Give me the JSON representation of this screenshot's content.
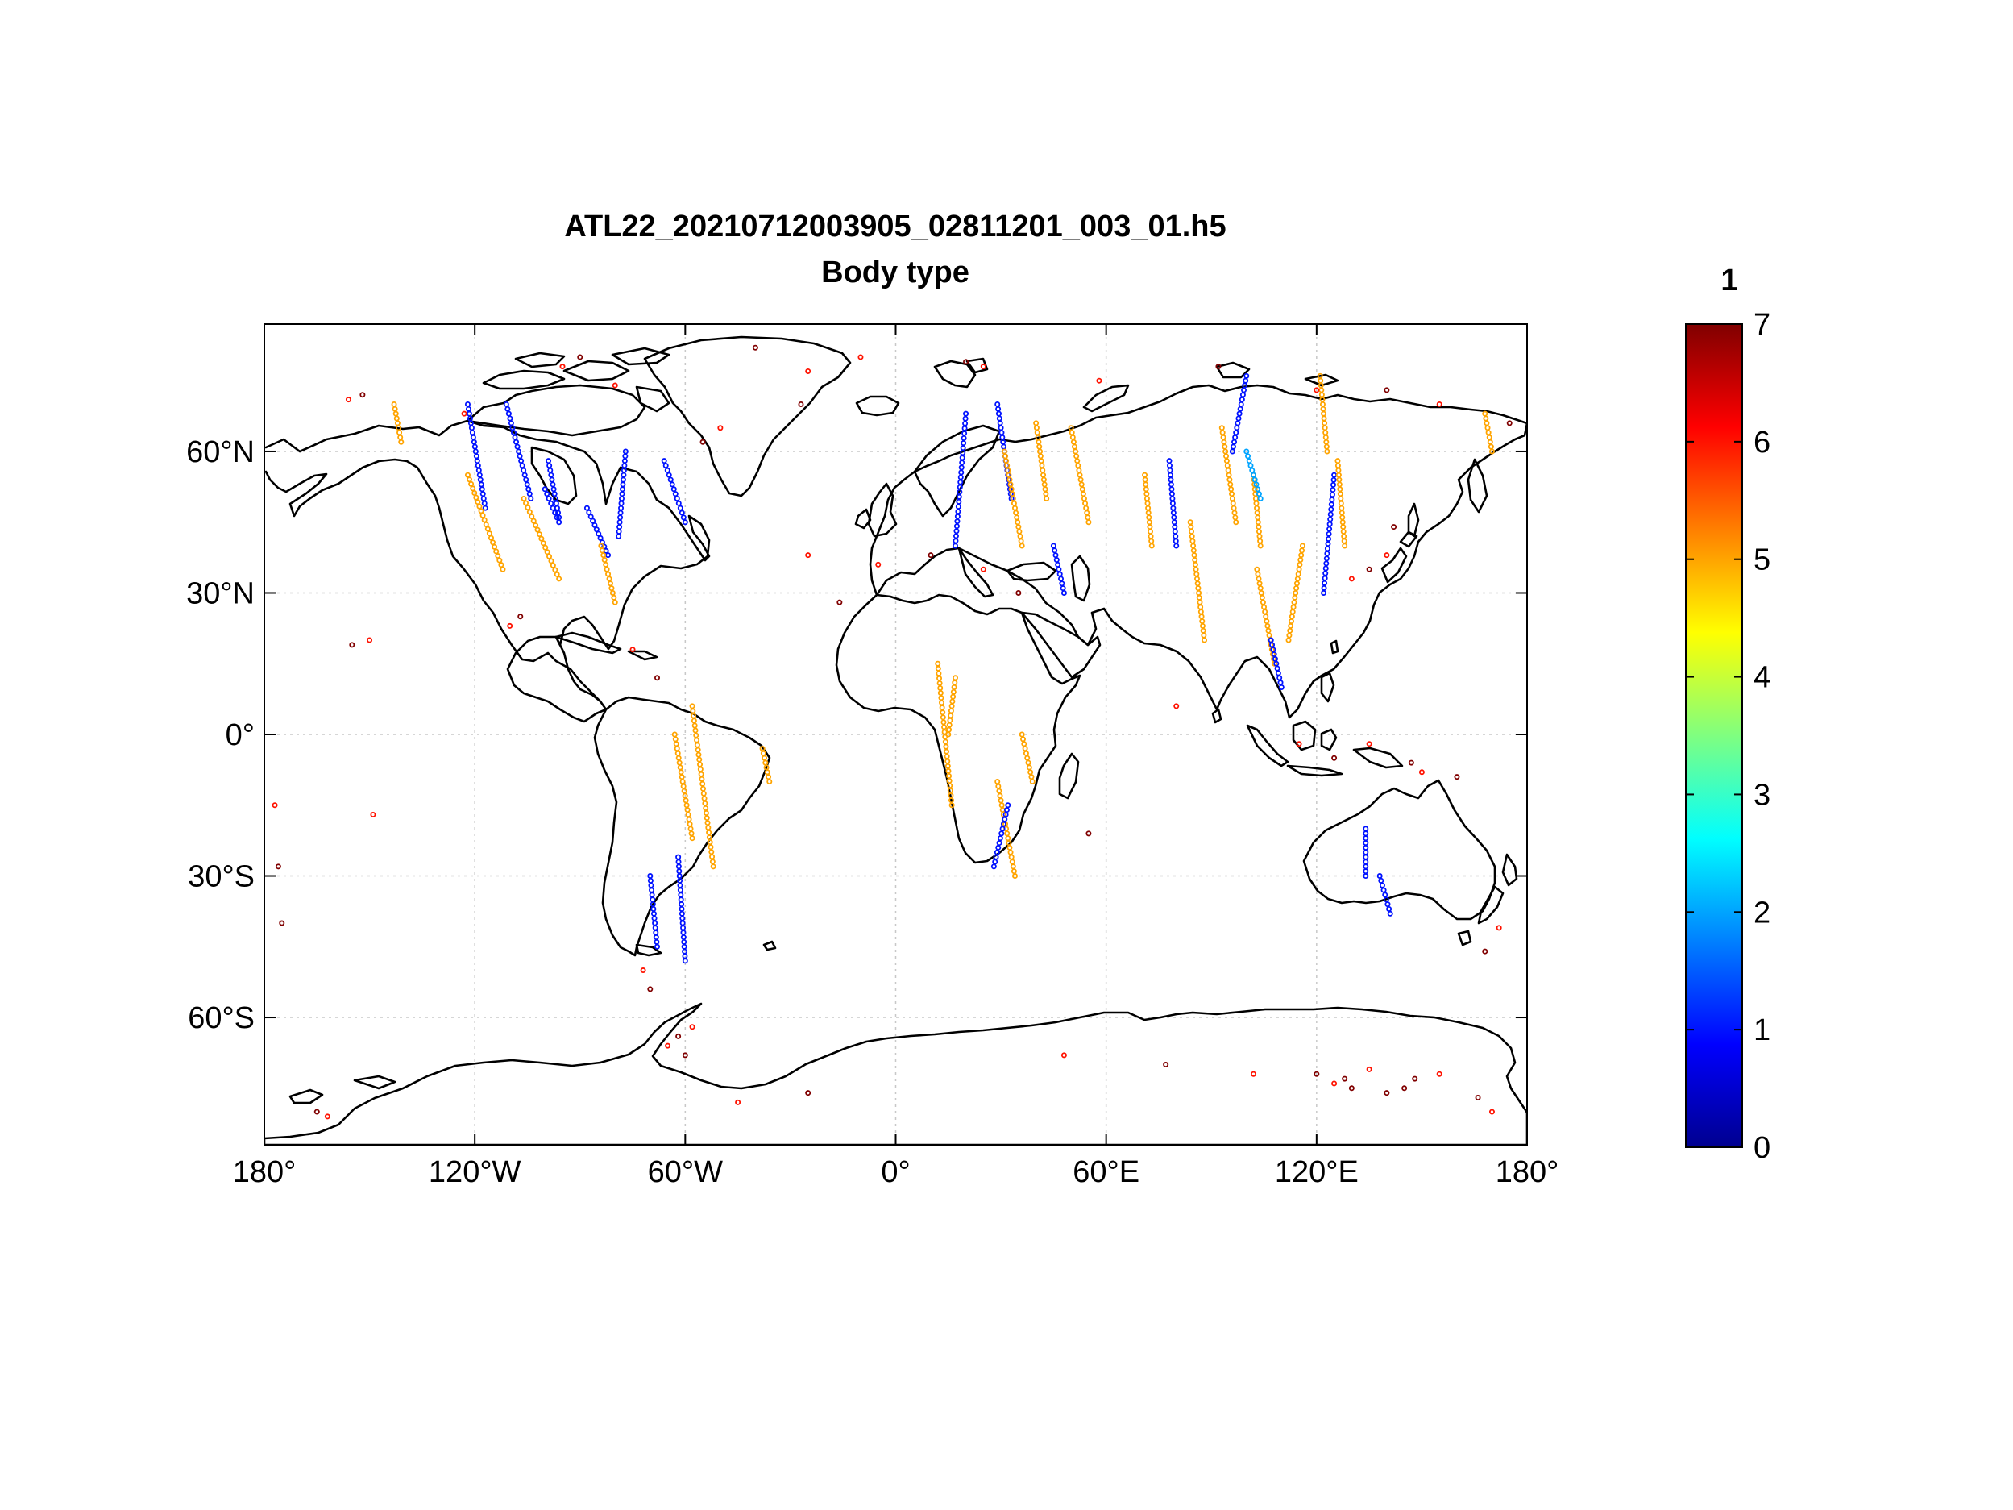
{
  "title": "ATL22_20210712003905_02811201_003_01.h5",
  "subtitle": "Body type",
  "colorbar": {
    "label": "1",
    "min": 0,
    "max": 7,
    "ticks": [
      "0",
      "1",
      "2",
      "3",
      "4",
      "5",
      "6",
      "7"
    ],
    "colormap": "jet"
  },
  "map": {
    "projection": "equirectangular",
    "lon_range": [
      -180,
      180
    ],
    "lat_range": [
      -87,
      87
    ],
    "grid": true,
    "x_ticks": [
      {
        "lon": -180,
        "label": "180°"
      },
      {
        "lon": -120,
        "label": "120°W"
      },
      {
        "lon": -60,
        "label": "60°W"
      },
      {
        "lon": 0,
        "label": "0°"
      },
      {
        "lon": 60,
        "label": "60°E"
      },
      {
        "lon": 120,
        "label": "120°E"
      },
      {
        "lon": 180,
        "label": "180°"
      }
    ],
    "y_ticks": [
      {
        "lat": 60,
        "label": "60°N"
      },
      {
        "lat": 30,
        "label": "30°N"
      },
      {
        "lat": 0,
        "label": "0°"
      },
      {
        "lat": -30,
        "label": "30°S"
      },
      {
        "lat": -60,
        "label": "60°S"
      }
    ],
    "tracks": [
      {
        "value": 5,
        "lon": [
          -143,
          -141
        ],
        "lat": [
          70,
          62
        ]
      },
      {
        "value": 1,
        "lon": [
          -122,
          -117
        ],
        "lat": [
          70,
          48
        ]
      },
      {
        "value": 5,
        "lon": [
          -122,
          -112
        ],
        "lat": [
          55,
          35
        ]
      },
      {
        "value": 1,
        "lon": [
          -111,
          -104
        ],
        "lat": [
          70,
          50
        ]
      },
      {
        "value": 5,
        "lon": [
          -106,
          -96
        ],
        "lat": [
          50,
          33
        ]
      },
      {
        "value": 1,
        "lon": [
          -99,
          -96
        ],
        "lat": [
          58,
          46
        ]
      },
      {
        "value": 1,
        "lon": [
          -88,
          -82
        ],
        "lat": [
          48,
          38
        ]
      },
      {
        "value": 5,
        "lon": [
          -84,
          -80
        ],
        "lat": [
          40,
          28
        ]
      },
      {
        "value": 1,
        "lon": [
          -77,
          -79
        ],
        "lat": [
          60,
          42
        ]
      },
      {
        "value": 1,
        "lon": [
          -66,
          -60
        ],
        "lat": [
          58,
          45
        ]
      },
      {
        "value": 5,
        "lon": [
          -58,
          -52
        ],
        "lat": [
          6,
          -28
        ]
      },
      {
        "value": 5,
        "lon": [
          -63,
          -58
        ],
        "lat": [
          0,
          -22
        ]
      },
      {
        "value": 1,
        "lon": [
          -62,
          -60
        ],
        "lat": [
          -26,
          -48
        ]
      },
      {
        "value": 1,
        "lon": [
          -70,
          -68
        ],
        "lat": [
          -30,
          -45
        ]
      },
      {
        "value": 5,
        "lon": [
          -38,
          -36
        ],
        "lat": [
          -3,
          -10
        ]
      },
      {
        "value": 5,
        "lon": [
          12,
          16
        ],
        "lat": [
          15,
          -15
        ]
      },
      {
        "value": 5,
        "lon": [
          15,
          17
        ],
        "lat": [
          0,
          12
        ]
      },
      {
        "value": 5,
        "lon": [
          29,
          34
        ],
        "lat": [
          -10,
          -30
        ]
      },
      {
        "value": 1,
        "lon": [
          32,
          28
        ],
        "lat": [
          -15,
          -28
        ]
      },
      {
        "value": 5,
        "lon": [
          36,
          39
        ],
        "lat": [
          0,
          -10
        ]
      },
      {
        "value": 1,
        "lon": [
          20,
          17
        ],
        "lat": [
          68,
          40
        ]
      },
      {
        "value": 1,
        "lon": [
          29,
          33
        ],
        "lat": [
          70,
          50
        ]
      },
      {
        "value": 5,
        "lon": [
          31,
          36
        ],
        "lat": [
          60,
          40
        ]
      },
      {
        "value": 5,
        "lon": [
          40,
          43
        ],
        "lat": [
          66,
          50
        ]
      },
      {
        "value": 5,
        "lon": [
          50,
          55
        ],
        "lat": [
          65,
          45
        ]
      },
      {
        "value": 1,
        "lon": [
          45,
          48
        ],
        "lat": [
          40,
          30
        ]
      },
      {
        "value": 5,
        "lon": [
          71,
          73
        ],
        "lat": [
          55,
          40
        ]
      },
      {
        "value": 1,
        "lon": [
          78,
          80
        ],
        "lat": [
          58,
          40
        ]
      },
      {
        "value": 5,
        "lon": [
          84,
          88
        ],
        "lat": [
          45,
          20
        ]
      },
      {
        "value": 5,
        "lon": [
          93,
          97
        ],
        "lat": [
          65,
          45
        ]
      },
      {
        "value": 1,
        "lon": [
          100,
          96
        ],
        "lat": [
          76,
          60
        ]
      },
      {
        "value": 5,
        "lon": [
          102,
          104
        ],
        "lat": [
          55,
          40
        ]
      },
      {
        "value": 5,
        "lon": [
          103,
          108
        ],
        "lat": [
          35,
          15
        ]
      },
      {
        "value": 2,
        "lon": [
          100,
          104
        ],
        "lat": [
          60,
          50
        ]
      },
      {
        "value": 1,
        "lon": [
          107,
          110
        ],
        "lat": [
          20,
          10
        ]
      },
      {
        "value": 5,
        "lon": [
          116,
          112
        ],
        "lat": [
          40,
          20
        ]
      },
      {
        "value": 1,
        "lon": [
          125,
          122
        ],
        "lat": [
          55,
          30
        ]
      },
      {
        "value": 5,
        "lon": [
          126,
          128
        ],
        "lat": [
          58,
          40
        ]
      },
      {
        "value": 5,
        "lon": [
          121,
          123
        ],
        "lat": [
          76,
          60
        ]
      },
      {
        "value": 1,
        "lon": [
          134,
          134
        ],
        "lat": [
          -20,
          -30
        ]
      },
      {
        "value": 1,
        "lon": [
          138,
          141
        ],
        "lat": [
          -30,
          -38
        ]
      },
      {
        "value": 5,
        "lon": [
          168,
          170
        ],
        "lat": [
          68,
          60
        ]
      },
      {
        "value": 1,
        "lon": [
          -100,
          -96
        ],
        "lat": [
          52,
          45
        ]
      }
    ],
    "scatter": [
      {
        "value": 7,
        "lon": -152,
        "lat": 72
      },
      {
        "value": 6,
        "lon": -156,
        "lat": 71
      },
      {
        "value": 6,
        "lon": -123,
        "lat": 68
      },
      {
        "value": 6,
        "lon": -95,
        "lat": 78
      },
      {
        "value": 7,
        "lon": -90,
        "lat": 80
      },
      {
        "value": 6,
        "lon": -80,
        "lat": 74
      },
      {
        "value": 7,
        "lon": -40,
        "lat": 82
      },
      {
        "value": 6,
        "lon": -25,
        "lat": 77
      },
      {
        "value": 7,
        "lon": -27,
        "lat": 70
      },
      {
        "value": 6,
        "lon": -50,
        "lat": 65
      },
      {
        "value": 7,
        "lon": -55,
        "lat": 62
      },
      {
        "value": 6,
        "lon": -10,
        "lat": 80
      },
      {
        "value": 7,
        "lon": 20,
        "lat": 79
      },
      {
        "value": 6,
        "lon": 25,
        "lat": 78
      },
      {
        "value": 6,
        "lon": 58,
        "lat": 75
      },
      {
        "value": 7,
        "lon": 92,
        "lat": 78
      },
      {
        "value": 6,
        "lon": 120,
        "lat": 73
      },
      {
        "value": 7,
        "lon": 140,
        "lat": 73
      },
      {
        "value": 6,
        "lon": 155,
        "lat": 70
      },
      {
        "value": 7,
        "lon": 175,
        "lat": 66
      },
      {
        "value": 6,
        "lon": -177,
        "lat": -15
      },
      {
        "value": 7,
        "lon": -176,
        "lat": -28
      },
      {
        "value": 6,
        "lon": -149,
        "lat": -17
      },
      {
        "value": 7,
        "lon": -175,
        "lat": -40
      },
      {
        "value": 6,
        "lon": -150,
        "lat": 20
      },
      {
        "value": 7,
        "lon": -155,
        "lat": 19
      },
      {
        "value": 6,
        "lon": 115,
        "lat": -2
      },
      {
        "value": 7,
        "lon": 125,
        "lat": -5
      },
      {
        "value": 6,
        "lon": 135,
        "lat": -2
      },
      {
        "value": 7,
        "lon": 147,
        "lat": -6
      },
      {
        "value": 6,
        "lon": 150,
        "lat": -8
      },
      {
        "value": 7,
        "lon": 160,
        "lat": -9
      },
      {
        "value": 6,
        "lon": 172,
        "lat": -41
      },
      {
        "value": 7,
        "lon": 168,
        "lat": -46
      },
      {
        "value": 6,
        "lon": 130,
        "lat": 33
      },
      {
        "value": 7,
        "lon": 135,
        "lat": 35
      },
      {
        "value": 6,
        "lon": 140,
        "lat": 38
      },
      {
        "value": 7,
        "lon": 142,
        "lat": 44
      },
      {
        "value": 6,
        "lon": 80,
        "lat": 6
      },
      {
        "value": 7,
        "lon": 55,
        "lat": -21
      },
      {
        "value": 6,
        "lon": -25,
        "lat": 38
      },
      {
        "value": 7,
        "lon": -16,
        "lat": 28
      },
      {
        "value": 6,
        "lon": -5,
        "lat": 36
      },
      {
        "value": 7,
        "lon": 10,
        "lat": 38
      },
      {
        "value": 6,
        "lon": 25,
        "lat": 35
      },
      {
        "value": 7,
        "lon": 35,
        "lat": 30
      },
      {
        "value": 6,
        "lon": -110,
        "lat": 23
      },
      {
        "value": 7,
        "lon": -107,
        "lat": 25
      },
      {
        "value": 6,
        "lon": -75,
        "lat": 18
      },
      {
        "value": 7,
        "lon": -68,
        "lat": 12
      },
      {
        "value": 6,
        "lon": -72,
        "lat": -50
      },
      {
        "value": 7,
        "lon": -70,
        "lat": -54
      },
      {
        "value": 6,
        "lon": -58,
        "lat": -62
      },
      {
        "value": 7,
        "lon": -62,
        "lat": -64
      },
      {
        "value": 6,
        "lon": -65,
        "lat": -66
      },
      {
        "value": 7,
        "lon": -60,
        "lat": -68
      },
      {
        "value": 6,
        "lon": -45,
        "lat": -78
      },
      {
        "value": 7,
        "lon": -25,
        "lat": -76
      },
      {
        "value": 6,
        "lon": 48,
        "lat": -68
      },
      {
        "value": 7,
        "lon": 77,
        "lat": -70
      },
      {
        "value": 6,
        "lon": 102,
        "lat": -72
      },
      {
        "value": 7,
        "lon": 120,
        "lat": -72
      },
      {
        "value": 6,
        "lon": 125,
        "lat": -74
      },
      {
        "value": 7,
        "lon": 128,
        "lat": -73
      },
      {
        "value": 7,
        "lon": 130,
        "lat": -75
      },
      {
        "value": 6,
        "lon": 135,
        "lat": -71
      },
      {
        "value": 7,
        "lon": 140,
        "lat": -76
      },
      {
        "value": 7,
        "lon": 145,
        "lat": -75
      },
      {
        "value": 7,
        "lon": 148,
        "lat": -73
      },
      {
        "value": 6,
        "lon": 155,
        "lat": -72
      },
      {
        "value": 7,
        "lon": 166,
        "lat": -77
      },
      {
        "value": 6,
        "lon": 170,
        "lat": -80
      },
      {
        "value": 7,
        "lon": -165,
        "lat": -80
      },
      {
        "value": 6,
        "lon": -162,
        "lat": -81
      }
    ]
  }
}
